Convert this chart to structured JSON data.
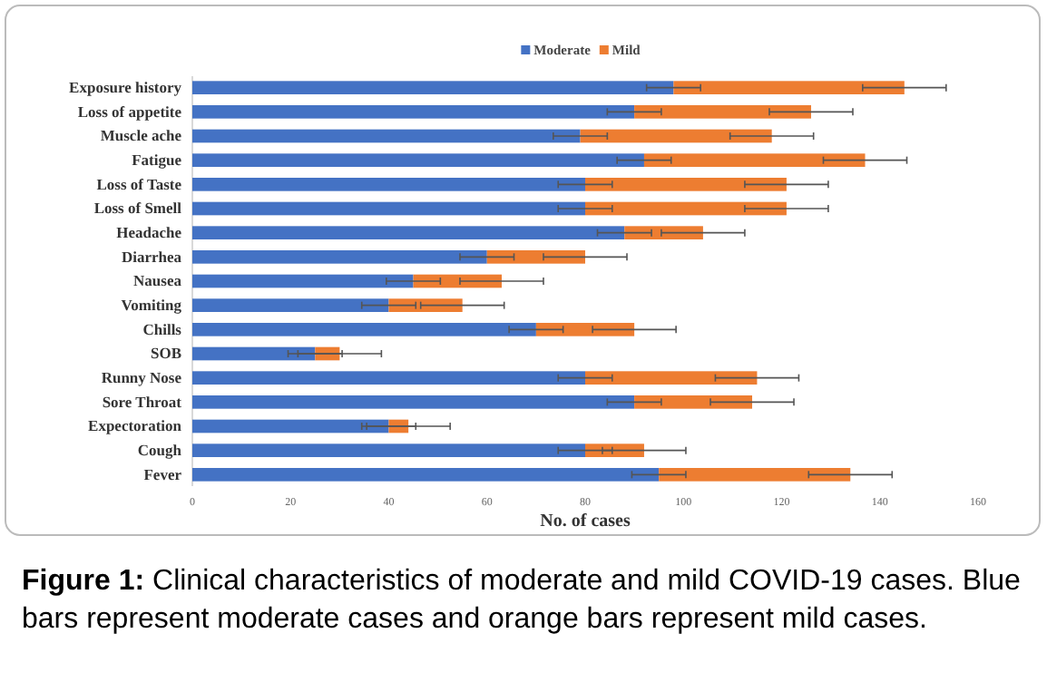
{
  "chart_data": {
    "type": "bar",
    "orientation": "horizontal",
    "stacked": true,
    "categories": [
      "Exposure history",
      "Loss of appetite",
      "Muscle ache",
      "Fatigue",
      "Loss of Taste",
      "Loss of Smell",
      "Headache",
      "Diarrhea",
      "Nausea",
      "Vomiting",
      "Chills",
      "SOB",
      "Runny Nose",
      "Sore Throat",
      "Expectoration",
      "Cough",
      "Fever"
    ],
    "series": [
      {
        "name": "Moderate",
        "color": "#4472c4",
        "values": [
          98,
          90,
          79,
          92,
          80,
          80,
          88,
          60,
          45,
          40,
          70,
          25,
          80,
          90,
          40,
          80,
          95
        ],
        "errors": [
          5.5,
          5.5,
          5.5,
          5.5,
          5.5,
          5.5,
          5.5,
          5.5,
          5.5,
          5.5,
          5.5,
          5.5,
          5.5,
          5.5,
          5.5,
          5.5,
          5.5
        ]
      },
      {
        "name": "Mild",
        "color": "#ed7d31",
        "values": [
          47,
          36,
          39,
          45,
          41,
          41,
          16,
          20,
          18,
          15,
          20,
          5,
          35,
          24,
          4,
          12,
          39
        ],
        "errors": [
          8.5,
          8.5,
          8.5,
          8.5,
          8.5,
          8.5,
          8.5,
          8.5,
          8.5,
          8.5,
          8.5,
          8.5,
          8.5,
          8.5,
          8.5,
          8.5,
          8.5
        ]
      }
    ],
    "xlim": [
      0,
      160
    ],
    "xticks": [
      0,
      20,
      40,
      60,
      80,
      100,
      120,
      140,
      160
    ],
    "xlabel": "No. of cases",
    "legend": "top",
    "grid": false,
    "annotations": [
      "Figure 1: Clinical characteristics of moderate and mild COVID-19 cases. Blue bars represent moderate cases and orange bars represent mild cases."
    ]
  }
}
